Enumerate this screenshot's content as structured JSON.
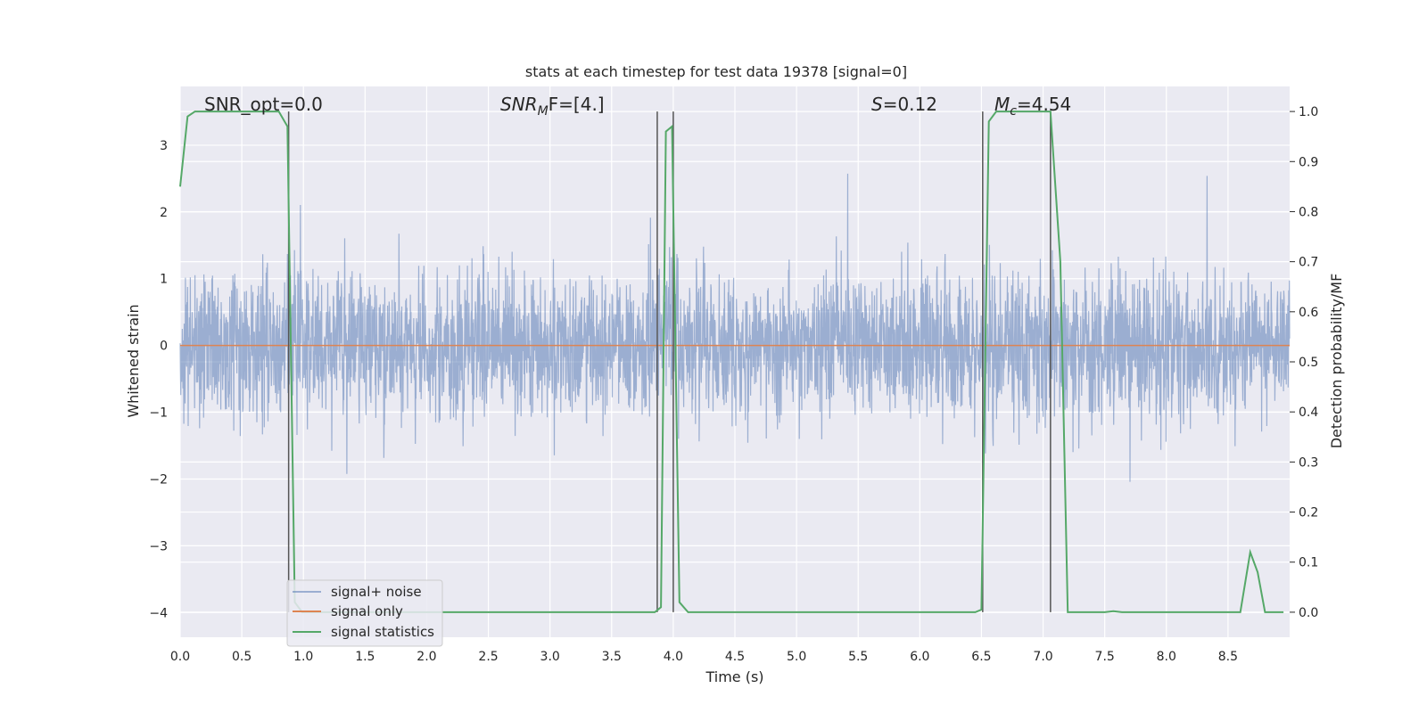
{
  "chart_data": {
    "type": "line",
    "title": "stats at each timestep for test data 19378 [signal=0]",
    "xlabel": "Time (s)",
    "ylabel_left": "Whitened strain",
    "ylabel_right": "Detection probability/MF",
    "xlim": [
      0,
      9
    ],
    "ylim_left": [
      -4.37,
      3.88
    ],
    "ylim_right": [
      -0.05,
      1.05
    ],
    "x_ticks": [
      "0.0",
      "0.5",
      "1.0",
      "1.5",
      "2.0",
      "2.5",
      "3.0",
      "3.5",
      "4.0",
      "4.5",
      "5.0",
      "5.5",
      "6.0",
      "6.5",
      "7.0",
      "7.5",
      "8.0",
      "8.5"
    ],
    "y_ticks_left": [
      "3",
      "2",
      "1",
      "0",
      "−1",
      "−2",
      "−3",
      "−4"
    ],
    "y_ticks_right": [
      "1.0",
      "0.9",
      "0.8",
      "0.7",
      "0.6",
      "0.5",
      "0.4",
      "0.3",
      "0.2",
      "0.1",
      "0.0"
    ],
    "grid": true,
    "legend_position": "lower-left",
    "annotations": {
      "snr_opt": "SNR_opt=0.0",
      "snr_mf_main": "SNR",
      "snr_mf_sub": "M",
      "snr_mf_rest": "F=[4.]",
      "s_main": "S",
      "s_rest": "=0.12",
      "mc_main": "M",
      "mc_sub": "c",
      "mc_rest": "=4.54"
    },
    "series": [
      {
        "name": "signal+ noise",
        "color": "#4c72b0",
        "axis": "left",
        "style": "noise band, roughly within -1.8 to 2.0 with spikes to about -3.9 and 3.4"
      },
      {
        "name": "signal only",
        "color": "#dd8452",
        "axis": "left",
        "x": [
          0,
          9
        ],
        "y": [
          0,
          0
        ]
      },
      {
        "name": "signal statistics",
        "color": "#55a868",
        "axis": "right",
        "x": [
          0.0,
          0.06,
          0.12,
          0.8,
          0.87,
          0.93,
          0.99,
          1.05,
          3.85,
          3.9,
          3.94,
          3.99,
          4.05,
          4.12,
          6.45,
          6.5,
          6.56,
          6.62,
          7.06,
          7.14,
          7.2,
          7.5,
          7.57,
          7.64,
          8.6,
          8.68,
          8.74,
          8.8,
          8.95
        ],
        "y": [
          0.85,
          0.99,
          1.0,
          1.0,
          0.97,
          0.02,
          0.0,
          0.0,
          0.0,
          0.01,
          0.96,
          0.97,
          0.02,
          0.0,
          0.0,
          0.005,
          0.98,
          1.0,
          1.0,
          0.7,
          0.0,
          0.0,
          0.002,
          0.0,
          0.0,
          0.12,
          0.08,
          0.0,
          0.0
        ]
      }
    ],
    "vertical_markers": [
      0.88,
      3.87,
      4.0,
      6.51,
      7.06
    ]
  }
}
